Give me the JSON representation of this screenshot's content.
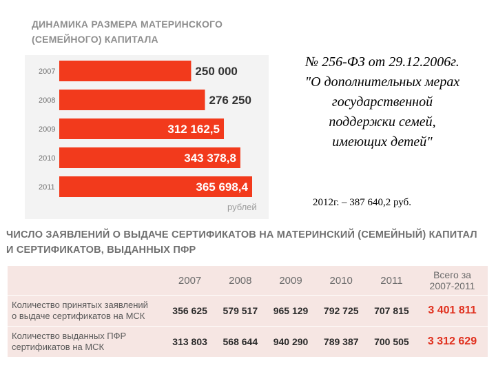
{
  "chart_title": {
    "line1": "ДИНАМИКА РАЗМЕРА МАТЕРИНСКОГО",
    "line2": "(СЕМЕЙНОГО) КАПИТАЛА"
  },
  "chart_data": {
    "type": "bar",
    "orientation": "horizontal",
    "title": "ДИНАМИКА РАЗМЕРА МАТЕРИНСКОГО (СЕМЕЙНОГО) КАПИТАЛА",
    "categories": [
      "2007",
      "2008",
      "2009",
      "2010",
      "2011"
    ],
    "values": [
      250000,
      276250,
      312162.5,
      343378.8,
      365698.4
    ],
    "value_labels": [
      "250 000",
      "276 250",
      "312 162,5",
      "343 378,8",
      "365 698,4"
    ],
    "unit": "рублей",
    "color": "#f23a1c",
    "grid": false
  },
  "law": {
    "lines": [
      "№ 256-ФЗ от 29.12.2006г.",
      "\"О дополнительных мерах",
      "государственной",
      "поддержки семей,",
      "имеющих детей\""
    ]
  },
  "sum_2012": "2012г. – 387 640,2 руб.",
  "table": {
    "title_line1": "ЧИСЛО ЗАЯВЛЕНИЙ О ВЫДАЧЕ СЕРТИФИКАТОВ НА МАТЕРИНСКИЙ (СЕМЕЙНЫЙ) КАПИТАЛ",
    "title_line2": "И СЕРТИФИКАТОВ, ВЫДАННЫХ ПФР",
    "headers": [
      "2007",
      "2008",
      "2009",
      "2010",
      "2011"
    ],
    "total_header_line1": "Всего за",
    "total_header_line2": "2007-2011",
    "rows": [
      {
        "label_line1": "Количество принятых заявлений",
        "label_line2": "о выдаче сертификатов на МСК",
        "values": [
          "356 625",
          "579 517",
          "965 129",
          "792 725",
          "707 815"
        ],
        "total": "3 401 811"
      },
      {
        "label_line1": "Количество выданных ПФР",
        "label_line2": "сертификатов на МСК",
        "values": [
          "313 803",
          "568 644",
          "940 290",
          "789 387",
          "700 505"
        ],
        "total": "3 312 629"
      }
    ],
    "accent_color": "#e0301e"
  }
}
